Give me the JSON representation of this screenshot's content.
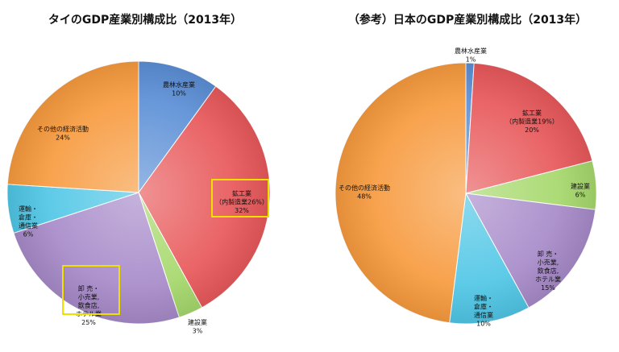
{
  "chart_data": [
    {
      "type": "pie",
      "title": "タイのGDP産業別構成比（2013年）",
      "slices": [
        {
          "label": [
            "農林水産業"
          ],
          "value": 10,
          "value_text": "10%",
          "color": "#5b8fd6"
        },
        {
          "label": [
            "鉱工業",
            "（内製造業26%）"
          ],
          "value": 32,
          "value_text": "32%",
          "color": "#e8585a",
          "highlight": true
        },
        {
          "label": [
            "建設業"
          ],
          "value": 3,
          "value_text": "3%",
          "color": "#a6d86b"
        },
        {
          "label": [
            "卸 売・",
            "小売業,",
            "飲食店,",
            "ホテル業"
          ],
          "value": 25,
          "value_text": "25%",
          "color": "#a78ac9",
          "highlight": true
        },
        {
          "label": [
            "運輸・",
            "倉庫・",
            "通信業"
          ],
          "value": 6,
          "value_text": "6%",
          "color": "#4fc6e6"
        },
        {
          "label": [
            "その他の経済活動"
          ],
          "value": 24,
          "value_text": "24%",
          "color": "#f79a3e"
        }
      ]
    },
    {
      "type": "pie",
      "title": "（参考）日本のGDP産業別構成比（2013年）",
      "slices": [
        {
          "label": [
            "農林水産業"
          ],
          "value": 1,
          "value_text": "1%",
          "color": "#5b8fd6"
        },
        {
          "label": [
            "鉱工業",
            "（内製造業19%）"
          ],
          "value": 20,
          "value_text": "20%",
          "color": "#e8585a"
        },
        {
          "label": [
            "建設業"
          ],
          "value": 6,
          "value_text": "6%",
          "color": "#a6d86b"
        },
        {
          "label": [
            "卸 売・",
            "小売業,",
            "飲食店,",
            "ホテル業"
          ],
          "value": 15,
          "value_text": "15%",
          "color": "#a78ac9"
        },
        {
          "label": [
            "運輸・",
            "倉庫・",
            "通信業"
          ],
          "value": 10,
          "value_text": "10%",
          "color": "#4fc6e6"
        },
        {
          "label": [
            "その他の経済活動"
          ],
          "value": 48,
          "value_text": "48%",
          "color": "#f79a3e"
        }
      ]
    }
  ]
}
